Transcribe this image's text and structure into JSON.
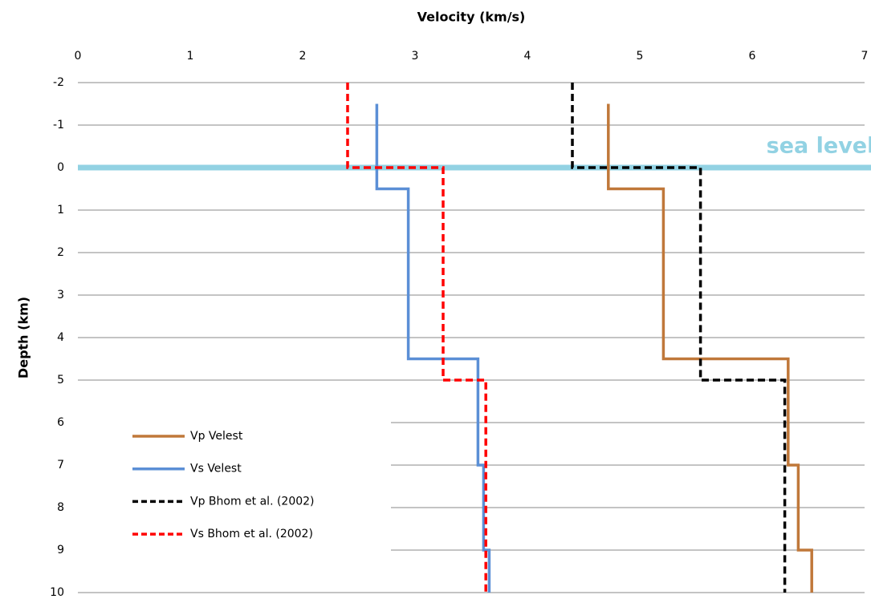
{
  "chart_data": {
    "type": "line",
    "x_label": "Velocity (km/s)",
    "y_label": "Depth (km)",
    "xlim": [
      0,
      7
    ],
    "xticks": [
      0,
      1,
      2,
      3,
      4,
      5,
      6,
      7
    ],
    "ylim": [
      -2,
      10
    ],
    "yticks": [
      -2,
      -1,
      0,
      1,
      2,
      3,
      4,
      5,
      6,
      7,
      8,
      9,
      10
    ],
    "y_reversed": true,
    "x_axis_position": "top",
    "grid": true,
    "legend": "lower left",
    "annotations": [
      {
        "text": "sea level",
        "y": 0,
        "color": "#92d2e3"
      }
    ],
    "series": [
      {
        "name": "Vp Velest",
        "color": "#c0783a",
        "dashed": false,
        "x": [
          4.72,
          4.72,
          5.21,
          5.21,
          6.32,
          6.32,
          6.41,
          6.41,
          6.53,
          6.53
        ],
        "y": [
          -1.5,
          0.5,
          0.5,
          4.5,
          4.5,
          7,
          7,
          9,
          9,
          10
        ]
      },
      {
        "name": "Vs Velest",
        "color": "#5b8fd6",
        "dashed": false,
        "x": [
          2.66,
          2.66,
          2.94,
          2.94,
          3.56,
          3.56,
          3.61,
          3.61,
          3.66,
          3.66
        ],
        "y": [
          -1.5,
          0.5,
          0.5,
          4.5,
          4.5,
          7,
          7,
          9,
          9,
          10
        ]
      },
      {
        "name": "Vp Bhom et al. (2002)",
        "color": "#000000",
        "dashed": true,
        "x": [
          4.4,
          4.4,
          5.54,
          5.54,
          6.29,
          6.29
        ],
        "y": [
          -2,
          0,
          0,
          5,
          5,
          10
        ]
      },
      {
        "name": "Vs Bhom et al. (2002)",
        "color": "#ff0000",
        "dashed": true,
        "x": [
          2.4,
          2.4,
          3.25,
          3.25,
          3.63,
          3.63
        ],
        "y": [
          -2,
          0,
          0,
          5,
          5,
          10
        ]
      }
    ]
  }
}
